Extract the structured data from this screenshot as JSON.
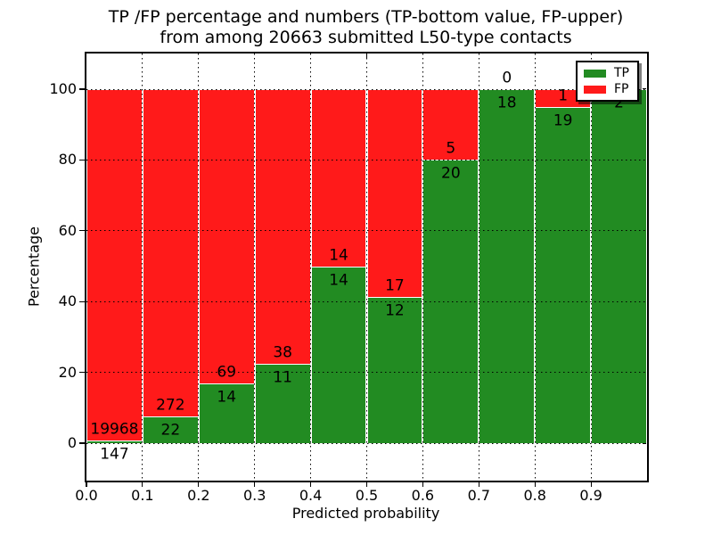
{
  "title": {
    "line1": "TP /FP percentage and numbers (TP-bottom value, FP-upper)",
    "line2": "from among 20663 submitted L50-type contacts"
  },
  "axes": {
    "xlabel": "Predicted probability",
    "ylabel": "Percentage",
    "xtick_labels": [
      "0.0",
      "0.1",
      "0.2",
      "0.3",
      "0.4",
      "0.5",
      "0.6",
      "0.7",
      "0.8",
      "0.9"
    ],
    "ytick_labels": [
      "0",
      "20",
      "40",
      "60",
      "80",
      "100"
    ],
    "ytick_values": [
      0,
      20,
      40,
      60,
      80,
      100
    ]
  },
  "legend": {
    "items": [
      {
        "label": "TP",
        "color": "#228b22"
      },
      {
        "label": "FP",
        "color": "#ff1a1a"
      }
    ]
  },
  "colors": {
    "tp": "#228b22",
    "fp": "#ff1a1a",
    "background": "#ffffff",
    "text": "#000000",
    "bar_edge": "#ffffff"
  },
  "chart_data": {
    "type": "bar",
    "stacked": true,
    "normalized": "each bin scaled to 100%",
    "title": "TP /FP percentage and numbers (TP-bottom value, FP-upper) from among 20663 submitted L50-type contacts",
    "xlabel": "Predicted probability",
    "ylabel": "Percentage",
    "total_contacts": 20663,
    "bin_width": 0.1,
    "bin_starts": [
      0.0,
      0.1,
      0.2,
      0.3,
      0.4,
      0.5,
      0.6,
      0.7,
      0.8,
      0.9
    ],
    "series": [
      {
        "name": "TP",
        "color": "#228b22",
        "counts": [
          147,
          22,
          14,
          11,
          14,
          12,
          20,
          18,
          19,
          2
        ]
      },
      {
        "name": "FP",
        "color": "#ff1a1a",
        "counts": [
          19968,
          272,
          69,
          38,
          14,
          17,
          5,
          0,
          1,
          0
        ]
      }
    ],
    "tp_percent": [
      0.73,
      7.48,
      16.87,
      22.45,
      50.0,
      41.38,
      80.0,
      100.0,
      95.0,
      100.0
    ],
    "ylim": [
      -10,
      110
    ],
    "xlim": [
      0.0,
      1.0
    ],
    "grid": true,
    "legend_position": "upper right"
  }
}
